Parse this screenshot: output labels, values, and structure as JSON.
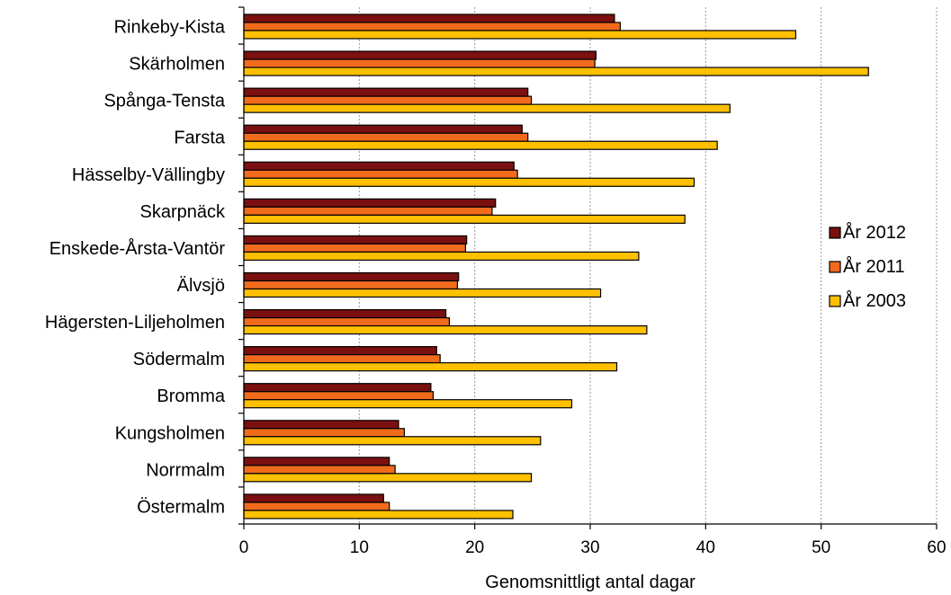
{
  "chart_data": {
    "type": "bar",
    "orientation": "horizontal",
    "categories": [
      "Rinkeby-Kista",
      "Skärholmen",
      "Spånga-Tensta",
      "Farsta",
      "Hässelby-Vällingby",
      "Skarpnäck",
      "Enskede-Årsta-Vantör",
      "Älvsjö",
      "Hägersten-Liljeholmen",
      "Södermalm",
      "Bromma",
      "Kungsholmen",
      "Norrmalm",
      "Östermalm"
    ],
    "series": [
      {
        "name": "År 2012",
        "color": "#7b1010",
        "values": [
          32.1,
          30.5,
          24.6,
          24.1,
          23.4,
          21.8,
          19.3,
          18.6,
          17.5,
          16.7,
          16.2,
          13.4,
          12.6,
          12.1
        ]
      },
      {
        "name": "År 2011",
        "color": "#f26b1d",
        "values": [
          32.6,
          30.4,
          24.9,
          24.6,
          23.7,
          21.5,
          19.2,
          18.5,
          17.8,
          17.0,
          16.4,
          13.9,
          13.1,
          12.6
        ]
      },
      {
        "name": "År 2003",
        "color": "#ffc000",
        "values": [
          47.8,
          54.1,
          42.1,
          41.0,
          39.0,
          38.2,
          34.2,
          30.9,
          34.9,
          32.3,
          28.4,
          25.7,
          24.9,
          23.3
        ]
      }
    ],
    "xlabel": "Genomsnittligt antal dagar",
    "xlim": [
      0,
      60
    ],
    "xticks": [
      0,
      10,
      20,
      30,
      40,
      50,
      60
    ],
    "grid": "vertical dashed",
    "legend": "right"
  }
}
